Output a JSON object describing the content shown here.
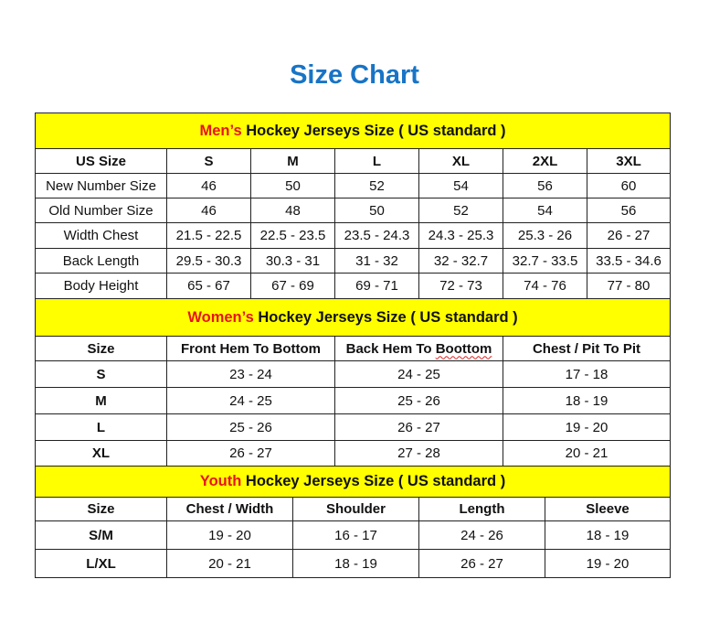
{
  "title": "Size Chart",
  "colors": {
    "title": "#1874c6",
    "band": "#ffff00",
    "accent": "#e8141b"
  },
  "sections": [
    {
      "key": "men",
      "accent": "Men’s",
      "heading": " Hockey Jerseys Size ( US standard )",
      "headers": [
        "US Size",
        "S",
        "M",
        "L",
        "XL",
        "2XL",
        "3XL"
      ],
      "rows": [
        [
          "New Number Size",
          "46",
          "50",
          "52",
          "54",
          "56",
          "60"
        ],
        [
          "Old Number Size",
          "46",
          "48",
          "50",
          "52",
          "54",
          "56"
        ],
        [
          "Width Chest",
          "21.5 - 22.5",
          "22.5 - 23.5",
          "23.5 - 24.3",
          "24.3 - 25.3",
          "25.3 - 26",
          "26 - 27"
        ],
        [
          "Back Length",
          "29.5 - 30.3",
          "30.3 - 31",
          "31 - 32",
          "32 - 32.7",
          "32.7 - 33.5",
          "33.5 - 34.6"
        ],
        [
          "Body Height",
          "65 - 67",
          "67 - 69",
          "69 - 71",
          "72 - 73",
          "74 - 76",
          "77 - 80"
        ]
      ]
    },
    {
      "key": "women",
      "accent": "Women’s",
      "heading": " Hockey Jerseys Size ( US standard )",
      "headers": [
        "Size",
        "Front Hem To Bottom",
        "Back Hem To Boottom",
        "Chest / Pit To Pit"
      ],
      "rows": [
        [
          "S",
          "23 - 24",
          "24 - 25",
          "17 - 18"
        ],
        [
          "M",
          "24 - 25",
          "25 - 26",
          "18 - 19"
        ],
        [
          "L",
          "25 - 26",
          "26 - 27",
          "19 - 20"
        ],
        [
          "XL",
          "26 - 27",
          "27 - 28",
          "20 - 21"
        ]
      ]
    },
    {
      "key": "youth",
      "accent": "Youth",
      "heading": " Hockey Jerseys Size ( US standard )",
      "headers": [
        "Size",
        "Chest / Width",
        "Shoulder",
        "Length",
        "Sleeve"
      ],
      "rows": [
        [
          "S/M",
          "19 - 20",
          "16 - 17",
          "24 - 26",
          "18 - 19"
        ],
        [
          "L/XL",
          "20 - 21",
          "18 - 19",
          "26 - 27",
          "19 - 20"
        ]
      ]
    }
  ]
}
